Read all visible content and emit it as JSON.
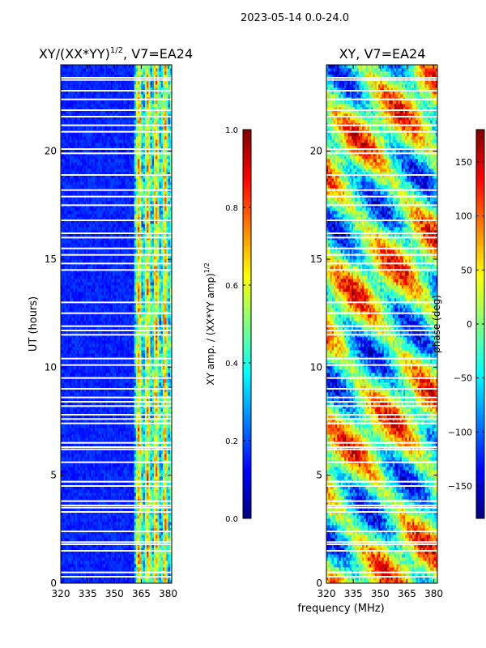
{
  "figure": {
    "suptitle": "2023-05-14 0.0-24.0",
    "xlabel": "frequency (MHz)"
  },
  "chart_data": [
    {
      "type": "heatmap",
      "title_main": "XY/(XX*YY)",
      "title_exp": "1/2",
      "title_tail": ", V7=EA24",
      "ylabel": "UT (hours)",
      "xlim": [
        320,
        382
      ],
      "ylim": [
        0,
        24
      ],
      "xticks": [
        320,
        335,
        350,
        365,
        380
      ],
      "yticks": [
        0,
        5,
        10,
        15,
        20
      ],
      "pattern": "amplitude: low (dark blue) below ~360 MHz, bright vertical bands 360-382 MHz",
      "blank_rows_hours": [
        0.3,
        0.5,
        1.5,
        1.8,
        1.9,
        2.4,
        3.3,
        3.5,
        3.6,
        3.8,
        4.5,
        4.7,
        5.6,
        6.2,
        6.3,
        6.5,
        7.4,
        7.6,
        7.8,
        8.2,
        8.4,
        8.6,
        9.0,
        9.5,
        10.1,
        10.4,
        11.5,
        11.7,
        11.9,
        12.5,
        13.0,
        14.5,
        14.8,
        15.2,
        15.5,
        16.0,
        16.2,
        16.8,
        17.5,
        17.9,
        18.2,
        18.9,
        19.9,
        20.1,
        20.9,
        21.2,
        21.6,
        21.9,
        22.4,
        22.8,
        23.3,
        23.4
      ],
      "colorbar": {
        "label_main": "XY amp. / (XX*YY amp)",
        "label_exp": "1/2",
        "ticks": [
          "0.0",
          "0.2",
          "0.4",
          "0.6",
          "0.8",
          "1.0"
        ],
        "range": [
          0,
          1
        ]
      }
    },
    {
      "type": "heatmap",
      "title": "XY, V7=EA24",
      "xlim": [
        320,
        382
      ],
      "ylim": [
        0,
        24
      ],
      "xticks": [
        320,
        335,
        350,
        365,
        380
      ],
      "yticks": [
        0,
        5,
        10,
        15,
        20
      ],
      "pattern": "phase: noisy mix of red/orange/blue/cyan patches across all frequencies",
      "blank_rows_hours": [
        0.3,
        0.5,
        1.5,
        1.8,
        1.9,
        2.4,
        3.3,
        3.5,
        3.6,
        3.8,
        4.5,
        4.7,
        5.6,
        6.2,
        6.3,
        6.5,
        7.4,
        7.6,
        7.8,
        8.2,
        8.4,
        8.6,
        9.0,
        9.5,
        10.1,
        10.4,
        11.5,
        11.7,
        11.9,
        12.5,
        13.0,
        14.5,
        14.8,
        15.2,
        15.5,
        16.0,
        16.2,
        16.8,
        17.5,
        17.9,
        18.2,
        18.9,
        19.9,
        20.1,
        20.9,
        21.2,
        21.6,
        21.9,
        22.4,
        22.8,
        23.3,
        23.4
      ],
      "colorbar": {
        "label": "phase (deg)",
        "ticks": [
          "150",
          "100",
          "50",
          "0",
          "−50",
          "−100",
          "−150"
        ],
        "tick_values": [
          150,
          100,
          50,
          0,
          -50,
          -100,
          -150
        ],
        "range": [
          -180,
          180
        ]
      }
    }
  ]
}
